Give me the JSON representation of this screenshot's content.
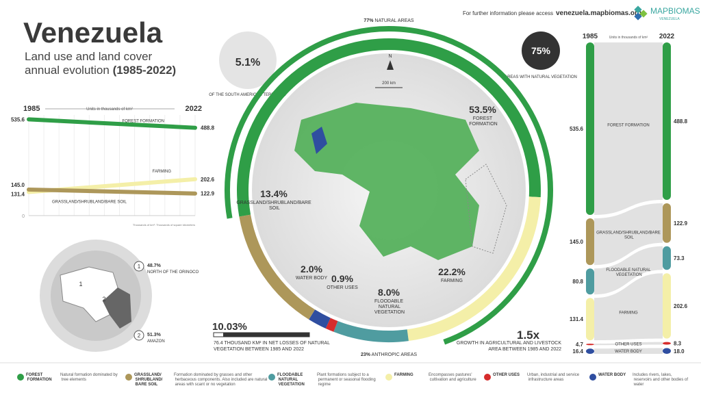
{
  "header": {
    "title": "Venezuela",
    "subtitle_line1": "Land use and land cover",
    "subtitle_line2": "annual evolution",
    "period": "(1985-2022)",
    "access_note": "For further information please access",
    "url": "venezuela.mapbiomas.org",
    "logo": "MAPBIOMAS",
    "logo_sub": "VENEZUELA"
  },
  "chart_data": [
    {
      "type": "line",
      "units": "Units in thousands of km²",
      "x": [
        1985,
        2022
      ],
      "xlim": [
        1985,
        2022
      ],
      "ylim": [
        0,
        560
      ],
      "yticks": [
        0
      ],
      "note": "Thousands of km²: Thousands of square kilometers",
      "series": [
        {
          "name": "FOREST FORMATION",
          "color": "#2f9e47",
          "values": [
            535.6,
            488.8
          ],
          "value_labels": [
            "535.6",
            "488.8"
          ]
        },
        {
          "name": "FARMING",
          "color": "#f4efa8",
          "values": [
            131.4,
            202.6
          ],
          "value_labels": [
            "131.4",
            "202.6"
          ]
        },
        {
          "name": "GRASSLAND/SHRUBLAND/BARE SOIL",
          "color": "#ad975a",
          "values": [
            145.0,
            122.9
          ],
          "value_labels": [
            "145.0",
            "122.9"
          ]
        }
      ]
    },
    {
      "type": "donut",
      "categories": [
        "FOREST FORMATION",
        "FARMING",
        "FLOODABLE NATURAL VEGETATION",
        "OTHER USES",
        "WATER BODY",
        "GRASSLAND/SHRUBLAND/BARE SOIL"
      ],
      "values": [
        53.5,
        22.2,
        8.0,
        0.9,
        2.0,
        13.4
      ],
      "value_labels": [
        "53.5%",
        "22.2%",
        "8.0%",
        "0.9%",
        "2.0%",
        "13.4%"
      ],
      "colors": [
        "#2f9e47",
        "#f4efa8",
        "#4f9ca0",
        "#d62c2c",
        "#2f4ea0",
        "#ad975a"
      ],
      "annotations": [
        {
          "label": "77%",
          "text": "NATURAL AREAS"
        },
        {
          "label": "23%",
          "text": "ANTHROPIC AREAS"
        }
      ],
      "map_north": "N",
      "map_scale": "200 km"
    },
    {
      "type": "sankey",
      "x": [
        "1985",
        "2022"
      ],
      "units": "Units in thousands of km²",
      "series": [
        {
          "name": "FOREST FORMATION",
          "color": "#2f9e47",
          "values": [
            535.6,
            488.8
          ],
          "value_labels": [
            "535.6",
            "488.8"
          ]
        },
        {
          "name": "GRASSLAND/SHRUBLAND/BARE SOIL",
          "color": "#ad975a",
          "values": [
            145.0,
            122.9
          ],
          "value_labels": [
            "145.0",
            "122.9"
          ]
        },
        {
          "name": "FLOODABLE NATURAL VEGETATION",
          "color": "#4f9ca0",
          "values": [
            80.8,
            73.3
          ],
          "value_labels": [
            "80.8",
            "73.3"
          ]
        },
        {
          "name": "FARMING",
          "color": "#f4efa8",
          "values": [
            131.4,
            202.6
          ],
          "value_labels": [
            "131.4",
            "202.6"
          ]
        },
        {
          "name": "OTHER USES",
          "color": "#d62c2c",
          "values": [
            4.7,
            8.3
          ],
          "value_labels": [
            "4.7",
            "8.3"
          ]
        },
        {
          "name": "WATER BODY",
          "color": "#2f4ea0",
          "values": [
            16.4,
            18.0
          ],
          "value_labels": [
            "16.4",
            "18.0"
          ]
        }
      ]
    }
  ],
  "stats": {
    "territory": {
      "value": "5.1%",
      "text": "OF THE SOUTH AMERICAN TERRITORY"
    },
    "natural": {
      "value": "75%",
      "text": "AREAS WITH NATURAL VEGETATION"
    },
    "losses": {
      "value": "10.03%",
      "lines": [
        "76.4 THOUSAND KM² IN NET LOSSES OF NATURAL",
        "VEGETATION BETWEEN 1985 AND 2022"
      ]
    },
    "growth": {
      "value": "1.5x",
      "lines": [
        "GROWTH IN AGRICULTURAL AND LIVESTOCK",
        "AREA BETWEEN 1985 AND 2022"
      ]
    }
  },
  "regions": [
    {
      "number": "1",
      "share": "48.7%",
      "name": "NORTH OF THE ORINOCO"
    },
    {
      "number": "2",
      "share": "51.3%",
      "name": "AMAZON"
    }
  ],
  "legend": [
    {
      "name": "FOREST FORMATION",
      "color": "#2f9e47",
      "description": "Natural formation dominated by tree elements"
    },
    {
      "name": "GRASSLAND/ SHRUBLAND/ BARE SOIL",
      "color": "#ad975a",
      "description": "Formation dominated by grasses and other herbaceous components. Also included are natural areas with scant or no vegetation"
    },
    {
      "name": "FLOODABLE NATURAL VEGETATION",
      "color": "#4f9ca0",
      "description": "Plant formations subject to a permanent or seasonal flooding regime"
    },
    {
      "name": "FARMING",
      "color": "#f4efa8",
      "description": "Encompasses pastures' cultivation and agriculture"
    },
    {
      "name": "OTHER USES",
      "color": "#d62c2c",
      "description": "Urban, industrial and service infrastructure areas"
    },
    {
      "name": "WATER BODY",
      "color": "#2f4ea0",
      "description": "Includes rivers, lakes, reservoirs and other bodies of water"
    }
  ]
}
